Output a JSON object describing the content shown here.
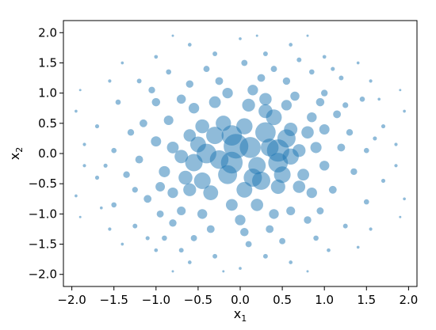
{
  "chart_data": {
    "type": "scatter",
    "title": "",
    "xlabel": {
      "base": "x",
      "sub": "1"
    },
    "ylabel": {
      "base": "x",
      "sub": "2"
    },
    "xlim": [
      -2.1,
      2.1
    ],
    "ylim": [
      -2.2,
      2.2
    ],
    "xticks": [
      -2.0,
      -1.5,
      -1.0,
      -0.5,
      0.0,
      0.5,
      1.0,
      1.5,
      2.0
    ],
    "yticks": [
      -2.0,
      -1.5,
      -1.0,
      -0.5,
      0.0,
      0.5,
      1.0,
      1.5,
      2.0
    ],
    "xtick_labels": [
      "−2.0",
      "−1.5",
      "−1.0",
      "−0.5",
      "0.0",
      "0.5",
      "1.0",
      "1.5",
      "2.0"
    ],
    "ytick_labels": [
      "−2.0",
      "−1.5",
      "−1.0",
      "−0.5",
      "0.0",
      "0.5",
      "1.0",
      "1.5",
      "2.0"
    ],
    "grid": false,
    "marker_color": "#1f77b4",
    "marker_alpha": 0.5,
    "size_note": "marker area scales with point density near the origin",
    "points": [
      [
        -0.05,
        0.12,
        220
      ],
      [
        0.12,
        0.1,
        160
      ],
      [
        -0.15,
        -0.35,
        130
      ],
      [
        0.3,
        0.35,
        150
      ],
      [
        -0.4,
        0.0,
        140
      ],
      [
        -0.3,
        0.3,
        110
      ],
      [
        0.25,
        -0.45,
        120
      ],
      [
        0.45,
        -0.15,
        140
      ],
      [
        0.55,
        0.25,
        120
      ],
      [
        -0.55,
        -0.15,
        110
      ],
      [
        -0.45,
        -0.45,
        100
      ],
      [
        0.05,
        -0.6,
        90
      ],
      [
        0.4,
        0.6,
        90
      ],
      [
        -0.2,
        0.5,
        85
      ],
      [
        0.6,
        -0.05,
        95
      ],
      [
        0.2,
        -0.2,
        110
      ],
      [
        -0.25,
        -0.1,
        125
      ],
      [
        0.35,
        0.1,
        115
      ],
      [
        -0.65,
        -0.4,
        70
      ],
      [
        -0.7,
        -0.05,
        65
      ],
      [
        0.7,
        0.05,
        60
      ],
      [
        0.45,
        -0.55,
        75
      ],
      [
        -0.35,
        -0.65,
        80
      ],
      [
        0.1,
        0.8,
        60
      ],
      [
        0.05,
        0.45,
        95
      ],
      [
        -0.45,
        0.45,
        70
      ],
      [
        0.6,
        0.4,
        65
      ],
      [
        -0.3,
        0.85,
        50
      ],
      [
        0.3,
        0.9,
        55
      ],
      [
        0.8,
        0.35,
        55
      ],
      [
        -0.8,
        0.1,
        50
      ],
      [
        0.75,
        -0.35,
        50
      ],
      [
        -0.6,
        0.3,
        55
      ],
      [
        0.9,
        0.1,
        45
      ],
      [
        -0.9,
        -0.3,
        45
      ],
      [
        0.2,
        -0.85,
        55
      ],
      [
        -0.1,
        -0.85,
        50
      ],
      [
        0.55,
        0.8,
        40
      ],
      [
        -0.55,
        0.75,
        40
      ],
      [
        -0.15,
        1.0,
        40
      ],
      [
        0.15,
        1.05,
        40
      ],
      [
        -0.8,
        -0.65,
        40
      ],
      [
        0.85,
        -0.65,
        40
      ],
      [
        1.0,
        0.4,
        38
      ],
      [
        -1.0,
        0.2,
        38
      ],
      [
        0.0,
        -1.1,
        40
      ],
      [
        0.4,
        -1.0,
        35
      ],
      [
        -0.45,
        -1.0,
        35
      ],
      [
        1.0,
        -0.2,
        35
      ],
      [
        -0.95,
        -0.55,
        32
      ],
      [
        0.65,
        0.95,
        30
      ],
      [
        -0.7,
        0.9,
        30
      ],
      [
        0.3,
        0.7,
        70
      ],
      [
        -0.1,
        0.3,
        150
      ],
      [
        0.15,
        -0.4,
        120
      ],
      [
        -0.5,
        0.15,
        90
      ],
      [
        0.5,
        -0.35,
        100
      ],
      [
        0.7,
        -0.55,
        55
      ],
      [
        -0.6,
        -0.6,
        60
      ],
      [
        0.85,
        0.6,
        35
      ],
      [
        -0.85,
        0.55,
        33
      ],
      [
        0.95,
        0.85,
        25
      ],
      [
        -1.0,
        0.85,
        25
      ],
      [
        1.15,
        0.65,
        22
      ],
      [
        -1.15,
        0.5,
        22
      ],
      [
        1.2,
        0.1,
        22
      ],
      [
        -1.2,
        -0.1,
        22
      ],
      [
        1.1,
        -0.6,
        22
      ],
      [
        -1.1,
        -0.75,
        22
      ],
      [
        0.6,
        -0.95,
        28
      ],
      [
        -0.7,
        -0.95,
        28
      ],
      [
        0.25,
        1.25,
        22
      ],
      [
        -0.25,
        1.2,
        22
      ],
      [
        0.55,
        1.2,
        20
      ],
      [
        -0.6,
        1.15,
        20
      ],
      [
        0.05,
        -1.3,
        25
      ],
      [
        0.35,
        -1.25,
        22
      ],
      [
        -0.35,
        -1.25,
        22
      ],
      [
        0.8,
        -1.1,
        20
      ],
      [
        -0.8,
        -1.15,
        20
      ],
      [
        1.3,
        0.35,
        16
      ],
      [
        -1.3,
        0.35,
        16
      ],
      [
        1.35,
        -0.3,
        16
      ],
      [
        -1.35,
        -0.35,
        16
      ],
      [
        0.95,
        -0.95,
        18
      ],
      [
        -0.95,
        -1.0,
        18
      ],
      [
        1.0,
        1.0,
        16
      ],
      [
        -1.05,
        1.05,
        16
      ],
      [
        0.4,
        1.4,
        14
      ],
      [
        -0.4,
        1.4,
        14
      ],
      [
        0.05,
        1.5,
        14
      ],
      [
        0.1,
        -1.5,
        14
      ],
      [
        0.5,
        -1.45,
        14
      ],
      [
        -0.55,
        -1.4,
        14
      ],
      [
        1.45,
        0.9,
        10
      ],
      [
        -1.45,
        0.85,
        10
      ],
      [
        1.5,
        -0.8,
        10
      ],
      [
        -1.5,
        -0.85,
        10
      ],
      [
        1.5,
        0.05,
        10
      ],
      [
        -1.5,
        0.05,
        10
      ],
      [
        0.85,
        1.35,
        10
      ],
      [
        -0.85,
        1.35,
        10
      ],
      [
        0.9,
        -1.4,
        10
      ],
      [
        -0.9,
        -1.4,
        10
      ],
      [
        1.2,
        1.25,
        8
      ],
      [
        -1.2,
        1.2,
        8
      ],
      [
        1.25,
        -1.2,
        8
      ],
      [
        -1.25,
        -1.2,
        8
      ],
      [
        0.3,
        1.65,
        8
      ],
      [
        -0.3,
        1.65,
        8
      ],
      [
        0.3,
        -1.7,
        8
      ],
      [
        -0.3,
        -1.7,
        8
      ],
      [
        1.7,
        0.45,
        6
      ],
      [
        -1.7,
        0.45,
        6
      ],
      [
        1.7,
        -0.45,
        6
      ],
      [
        -1.7,
        -0.4,
        6
      ],
      [
        0.6,
        1.8,
        5
      ],
      [
        -0.6,
        1.8,
        5
      ],
      [
        0.6,
        -1.8,
        5
      ],
      [
        -0.6,
        -1.8,
        5
      ],
      [
        1.85,
        0.15,
        4
      ],
      [
        -1.85,
        0.15,
        4
      ],
      [
        1.85,
        -0.2,
        4
      ],
      [
        -1.85,
        -0.2,
        4
      ],
      [
        1.0,
        1.6,
        5
      ],
      [
        -1.0,
        1.6,
        5
      ],
      [
        1.05,
        -1.6,
        5
      ],
      [
        -1.0,
        -1.6,
        5
      ],
      [
        1.55,
        1.2,
        4
      ],
      [
        -1.55,
        1.2,
        4
      ],
      [
        1.55,
        -1.25,
        4
      ],
      [
        -1.55,
        -1.25,
        4
      ],
      [
        0.0,
        1.9,
        3
      ],
      [
        0.0,
        -1.9,
        3
      ],
      [
        1.95,
        0.7,
        3
      ],
      [
        -1.95,
        0.7,
        3
      ],
      [
        1.95,
        -0.75,
        3
      ],
      [
        -1.95,
        -0.7,
        3
      ],
      [
        1.4,
        1.5,
        3
      ],
      [
        -1.4,
        1.5,
        3
      ],
      [
        1.4,
        -1.55,
        3
      ],
      [
        -1.4,
        -1.5,
        3
      ],
      [
        0.8,
        1.95,
        2
      ],
      [
        -0.8,
        1.95,
        2
      ],
      [
        0.8,
        -1.95,
        2
      ],
      [
        -0.8,
        -1.95,
        2
      ],
      [
        1.9,
        1.05,
        2
      ],
      [
        -1.9,
        1.05,
        2
      ],
      [
        1.9,
        -1.05,
        2
      ],
      [
        -1.9,
        -1.05,
        2
      ],
      [
        0.2,
        1.95,
        2
      ],
      [
        -0.2,
        -1.95,
        2
      ],
      [
        1.65,
        0.9,
        3
      ],
      [
        -1.65,
        -0.9,
        3
      ],
      [
        1.25,
        0.8,
        12
      ],
      [
        -1.25,
        -0.6,
        12
      ],
      [
        1.1,
        1.4,
        6
      ],
      [
        -1.1,
        -1.4,
        6
      ],
      [
        0.7,
        1.55,
        8
      ],
      [
        -0.7,
        -1.6,
        8
      ],
      [
        1.6,
        0.25,
        6
      ],
      [
        -1.6,
        -0.2,
        6
      ],
      [
        0.45,
        0.05,
        180
      ],
      [
        -0.1,
        -0.15,
        170
      ]
    ]
  }
}
